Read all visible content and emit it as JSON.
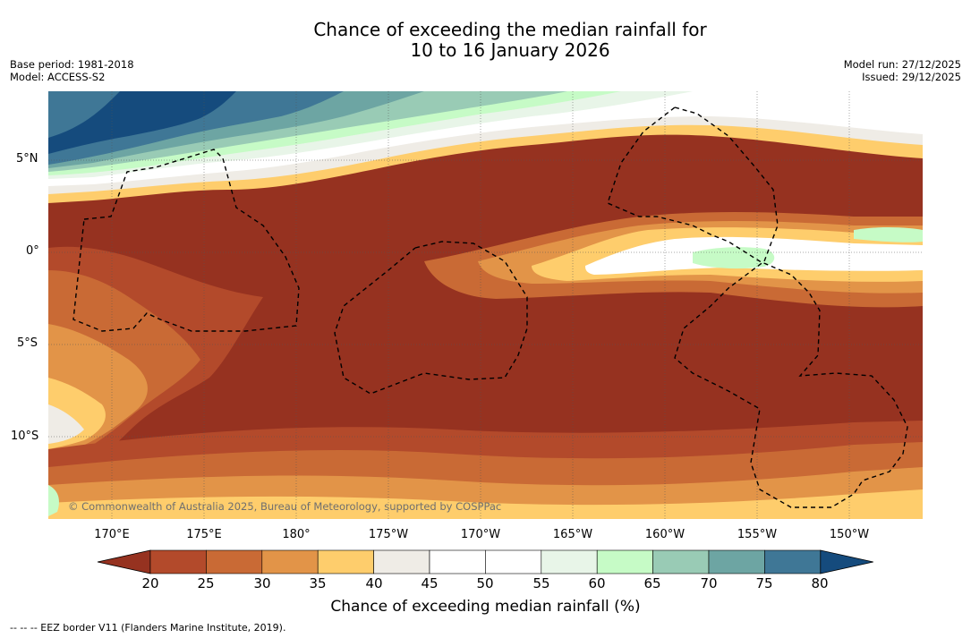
{
  "title_line1": "Chance of exceeding the median rainfall for",
  "title_line2": "10 to 16 January 2026",
  "base_period": "Base period: 1981-2018",
  "model": "Model: ACCESS-S2",
  "model_run": "Model run: 27/12/2025",
  "issued": "Issued: 29/12/2025",
  "lat_labels": [
    "5°N",
    "0°",
    "5°S",
    "10°S"
  ],
  "lon_labels": [
    "170°E",
    "175°E",
    "180°",
    "175°W",
    "170°W",
    "165°W",
    "160°W",
    "155°W",
    "150°W"
  ],
  "copyright": "© Commonwealth of Australia 2025, Bureau of Meteorology, supported by COSPPac",
  "colorbar": {
    "title": "Chance of exceeding median rainfall (%)",
    "ticks": [
      "20",
      "25",
      "30",
      "35",
      "40",
      "45",
      "50",
      "55",
      "60",
      "65",
      "70",
      "75",
      "80"
    ],
    "colors": [
      "#963220",
      "#b34a2b",
      "#c96a35",
      "#e29448",
      "#fecd6c",
      "#efece6",
      "#ffffff",
      "#ffffff",
      "#e8f5e8",
      "#c6fbc6",
      "#99cbb5",
      "#6da5a3",
      "#3f7796",
      "#154b7d"
    ]
  },
  "footer": "--  --  -- EEZ border V11 (Flanders Marine Institute, 2019)."
}
